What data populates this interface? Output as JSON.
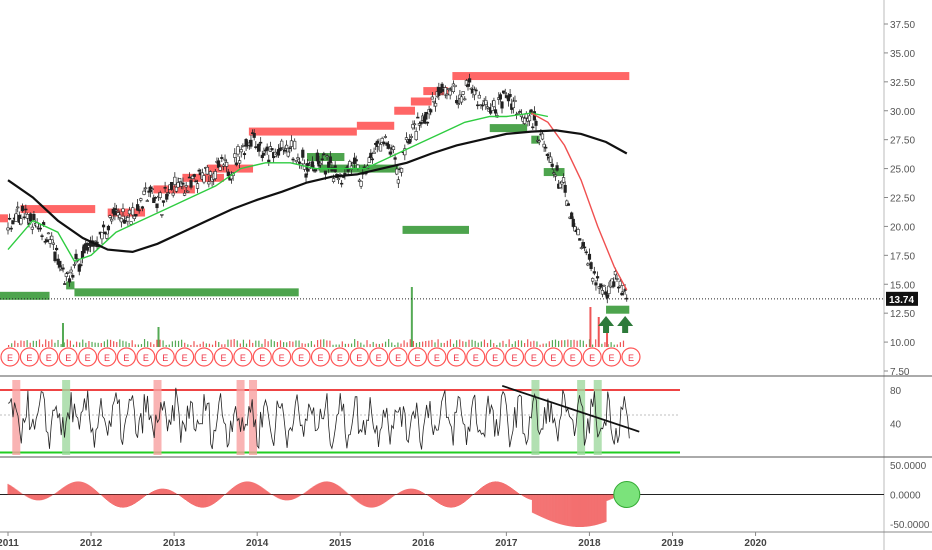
{
  "chart_data": [
    {
      "type": "line",
      "panel": "price",
      "price_axis_ticks": [
        "37.50",
        "35.00",
        "32.50",
        "30.00",
        "27.50",
        "25.00",
        "22.50",
        "20.00",
        "17.50",
        "15.00",
        "12.50",
        "10.00",
        "7.50"
      ],
      "ylim": [
        7.5,
        38.5
      ],
      "last_price": 13.74,
      "last_price_label": "13.74",
      "x_ticks": [
        "2011",
        "2012",
        "2013",
        "2014",
        "2015",
        "2016",
        "2017",
        "2018",
        "2019",
        "2020"
      ],
      "xlim": [
        2011.0,
        2020.8
      ],
      "series": [
        {
          "role": "price",
          "color": "#111111",
          "points": [
            [
              2011.0,
              19.5
            ],
            [
              2011.1,
              21.5
            ],
            [
              2011.25,
              20.5
            ],
            [
              2011.4,
              20.0
            ],
            [
              2011.5,
              19.0
            ],
            [
              2011.6,
              17.0
            ],
            [
              2011.7,
              15.0
            ],
            [
              2011.8,
              16.5
            ],
            [
              2011.95,
              18.0
            ],
            [
              2012.1,
              19.0
            ],
            [
              2012.3,
              21.0
            ],
            [
              2012.5,
              21.0
            ],
            [
              2012.7,
              23.0
            ],
            [
              2012.85,
              22.0
            ],
            [
              2013.0,
              23.5
            ],
            [
              2013.2,
              23.5
            ],
            [
              2013.4,
              24.5
            ],
            [
              2013.55,
              25.0
            ],
            [
              2013.7,
              25.0
            ],
            [
              2013.8,
              26.5
            ],
            [
              2013.95,
              28.0
            ],
            [
              2014.1,
              26.0
            ],
            [
              2014.3,
              26.5
            ],
            [
              2014.45,
              26.5
            ],
            [
              2014.6,
              25.0
            ],
            [
              2014.8,
              25.5
            ],
            [
              2015.0,
              24.5
            ],
            [
              2015.15,
              25.5
            ],
            [
              2015.25,
              24.0
            ],
            [
              2015.35,
              25.5
            ],
            [
              2015.5,
              27.5
            ],
            [
              2015.65,
              26.0
            ],
            [
              2015.7,
              24.0
            ],
            [
              2015.8,
              27.5
            ],
            [
              2016.0,
              29.0
            ],
            [
              2016.15,
              31.0
            ],
            [
              2016.3,
              32.0
            ],
            [
              2016.45,
              31.0
            ],
            [
              2016.55,
              32.5
            ],
            [
              2016.7,
              30.5
            ],
            [
              2016.85,
              30.0
            ],
            [
              2017.0,
              31.5
            ],
            [
              2017.15,
              30.0
            ],
            [
              2017.3,
              29.5
            ],
            [
              2017.4,
              28.0
            ],
            [
              2017.5,
              26.0
            ],
            [
              2017.6,
              24.5
            ],
            [
              2017.7,
              23.0
            ],
            [
              2017.8,
              20.0
            ],
            [
              2017.9,
              18.5
            ],
            [
              2018.0,
              17.0
            ],
            [
              2018.1,
              15.0
            ],
            [
              2018.2,
              14.5
            ],
            [
              2018.3,
              15.5
            ],
            [
              2018.38,
              14.5
            ],
            [
              2018.45,
              13.74
            ]
          ]
        },
        {
          "role": "moving-average-fast",
          "color": "#2ecc40",
          "points": [
            [
              2011.0,
              18.0
            ],
            [
              2011.3,
              20.5
            ],
            [
              2011.6,
              19.5
            ],
            [
              2011.8,
              17.0
            ],
            [
              2012.0,
              17.5
            ],
            [
              2012.3,
              19.5
            ],
            [
              2012.6,
              20.5
            ],
            [
              2012.9,
              21.5
            ],
            [
              2013.2,
              22.5
            ],
            [
              2013.5,
              23.5
            ],
            [
              2013.8,
              25.0
            ],
            [
              2014.1,
              25.5
            ],
            [
              2014.4,
              25.5
            ],
            [
              2014.7,
              25.0
            ],
            [
              2015.0,
              25.0
            ],
            [
              2015.3,
              25.0
            ],
            [
              2015.6,
              26.0
            ],
            [
              2015.9,
              27.0
            ],
            [
              2016.2,
              28.0
            ],
            [
              2016.5,
              29.0
            ],
            [
              2016.8,
              29.5
            ],
            [
              2017.0,
              29.5
            ],
            [
              2017.3,
              29.8
            ],
            [
              2017.5,
              29.5
            ]
          ]
        },
        {
          "role": "moving-average-medium",
          "color": "#f05050",
          "points": [
            [
              2017.3,
              29.8
            ],
            [
              2017.5,
              29.0
            ],
            [
              2017.7,
              27.0
            ],
            [
              2017.9,
              24.0
            ],
            [
              2018.1,
              20.0
            ],
            [
              2018.3,
              16.5
            ],
            [
              2018.45,
              14.5
            ]
          ]
        },
        {
          "role": "moving-average-slow",
          "color": "#111111",
          "points": [
            [
              2011.0,
              24.0
            ],
            [
              2011.3,
              22.5
            ],
            [
              2011.6,
              20.5
            ],
            [
              2011.9,
              19.0
            ],
            [
              2012.2,
              18.0
            ],
            [
              2012.5,
              17.8
            ],
            [
              2012.8,
              18.5
            ],
            [
              2013.1,
              19.5
            ],
            [
              2013.4,
              20.5
            ],
            [
              2013.7,
              21.5
            ],
            [
              2014.0,
              22.3
            ],
            [
              2014.3,
              23.0
            ],
            [
              2014.6,
              23.8
            ],
            [
              2014.9,
              24.3
            ],
            [
              2015.2,
              24.5
            ],
            [
              2015.5,
              25.0
            ],
            [
              2015.8,
              25.5
            ],
            [
              2016.1,
              26.3
            ],
            [
              2016.4,
              27.0
            ],
            [
              2016.7,
              27.5
            ],
            [
              2017.0,
              28.0
            ],
            [
              2017.3,
              28.2
            ],
            [
              2017.6,
              28.3
            ],
            [
              2017.9,
              28.0
            ],
            [
              2018.2,
              27.3
            ],
            [
              2018.45,
              26.3
            ]
          ]
        }
      ],
      "resistance_zones": [
        {
          "x": [
            2011.15,
            2012.05
          ],
          "y": 21.5
        },
        {
          "x": [
            2012.2,
            2012.65
          ],
          "y": 21.2
        },
        {
          "x": [
            2012.75,
            2013.25
          ],
          "y": 23.2
        },
        {
          "x": [
            2013.1,
            2013.6
          ],
          "y": 24.2
        },
        {
          "x": [
            2013.4,
            2013.95
          ],
          "y": 25.0
        },
        {
          "x": [
            2013.9,
            2015.2
          ],
          "y": 28.2
        },
        {
          "x": [
            2015.2,
            2015.65
          ],
          "y": 28.7
        },
        {
          "x": [
            2015.65,
            2015.9
          ],
          "y": 30.0
        },
        {
          "x": [
            2015.85,
            2016.1
          ],
          "y": 30.8
        },
        {
          "x": [
            2016.0,
            2016.3
          ],
          "y": 31.7
        },
        {
          "x": [
            2016.35,
            2018.48
          ],
          "y": 33.0
        },
        {
          "x": [
            2010.9,
            2011.0
          ],
          "y": 20.7
        }
      ],
      "support_zones": [
        {
          "x": [
            2010.9,
            2011.5
          ],
          "y": 14.0
        },
        {
          "x": [
            2011.7,
            2011.8
          ],
          "y": 14.9
        },
        {
          "x": [
            2011.8,
            2014.5
          ],
          "y": 14.3
        },
        {
          "x": [
            2014.6,
            2015.05
          ],
          "y": 26.0
        },
        {
          "x": [
            2014.75,
            2015.7
          ],
          "y": 25.0
        },
        {
          "x": [
            2015.75,
            2016.55
          ],
          "y": 19.7
        },
        {
          "x": [
            2016.8,
            2017.25
          ],
          "y": 28.5
        },
        {
          "x": [
            2017.3,
            2017.4
          ],
          "y": 27.5
        },
        {
          "x": [
            2017.45,
            2017.7
          ],
          "y": 24.7
        },
        {
          "x": [
            2018.2,
            2018.48
          ],
          "y": 12.8
        }
      ],
      "earnings_markers": [
        "E",
        "E",
        "E",
        "E",
        "E",
        "E",
        "E",
        "E",
        "E",
        "E",
        "E",
        "E",
        "E",
        "E",
        "E",
        "E",
        "E",
        "E",
        "E",
        "E",
        "E",
        "E",
        "E",
        "E",
        "E",
        "E",
        "E",
        "E",
        "E",
        "E",
        "E",
        "E",
        "E"
      ],
      "buy_arrows": [
        2018.2,
        2018.43
      ]
    },
    {
      "type": "line",
      "panel": "oscillator",
      "y_ticks": [
        "80",
        "40"
      ],
      "ylim": [
        2,
        92
      ],
      "upper_band": 80,
      "lower_band": 5,
      "trendline": {
        "x": [
          2016.95,
          2018.6
        ],
        "y": [
          85,
          30
        ]
      },
      "highlight_columns": [
        2011.1,
        2011.7,
        2012.8,
        2013.8,
        2013.95,
        2017.35,
        2017.9,
        2018.1
      ]
    },
    {
      "type": "bar",
      "panel": "momentum",
      "y_ticks": [
        "50.0000",
        "0.0000",
        "-50.0000"
      ],
      "ylim": [
        -60,
        55
      ],
      "marker_circle": {
        "x": 2018.45,
        "y": 0
      }
    }
  ]
}
